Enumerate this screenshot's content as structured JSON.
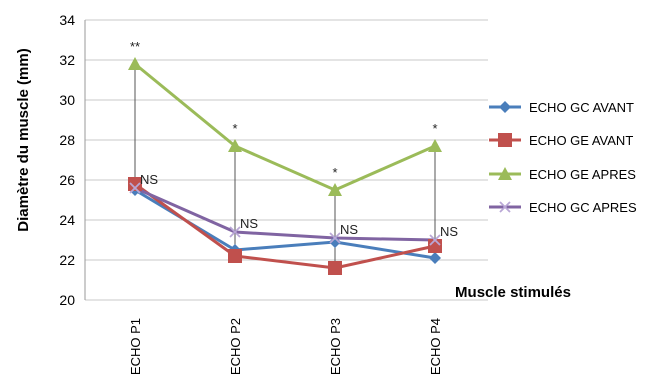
{
  "chart_data": {
    "type": "line",
    "title": "",
    "xlabel": "Muscle stimulés",
    "ylabel": "Diamètre du muscle (mm)",
    "ylim": [
      20,
      34
    ],
    "yticks": [
      20,
      22,
      24,
      26,
      28,
      30,
      32,
      34
    ],
    "categories": [
      "ECHO P1",
      "ECHO P2",
      "ECHO P3",
      "ECHO P4"
    ],
    "grid": true,
    "legend_position": "right",
    "series": [
      {
        "name": "ECHO GC AVANT",
        "color": "#4a7ebb",
        "marker": "diamond",
        "values": [
          25.5,
          22.5,
          22.9,
          22.1
        ]
      },
      {
        "name": "ECHO GE AVANT",
        "color": "#c0504d",
        "marker": "square",
        "values": [
          25.8,
          22.2,
          21.6,
          22.7
        ]
      },
      {
        "name": "ECHO GE APRES",
        "color": "#9bbb59",
        "marker": "triangle",
        "values": [
          31.8,
          27.7,
          25.5,
          27.7
        ]
      },
      {
        "name": "ECHO GC APRES",
        "color": "#8064a2",
        "marker": "x",
        "values": [
          25.6,
          23.4,
          23.1,
          23.0
        ]
      }
    ],
    "significance_marks": [
      "**",
      "*",
      "*",
      "*"
    ],
    "ns_labels": [
      "NS",
      "NS",
      "NS",
      "NS"
    ]
  }
}
